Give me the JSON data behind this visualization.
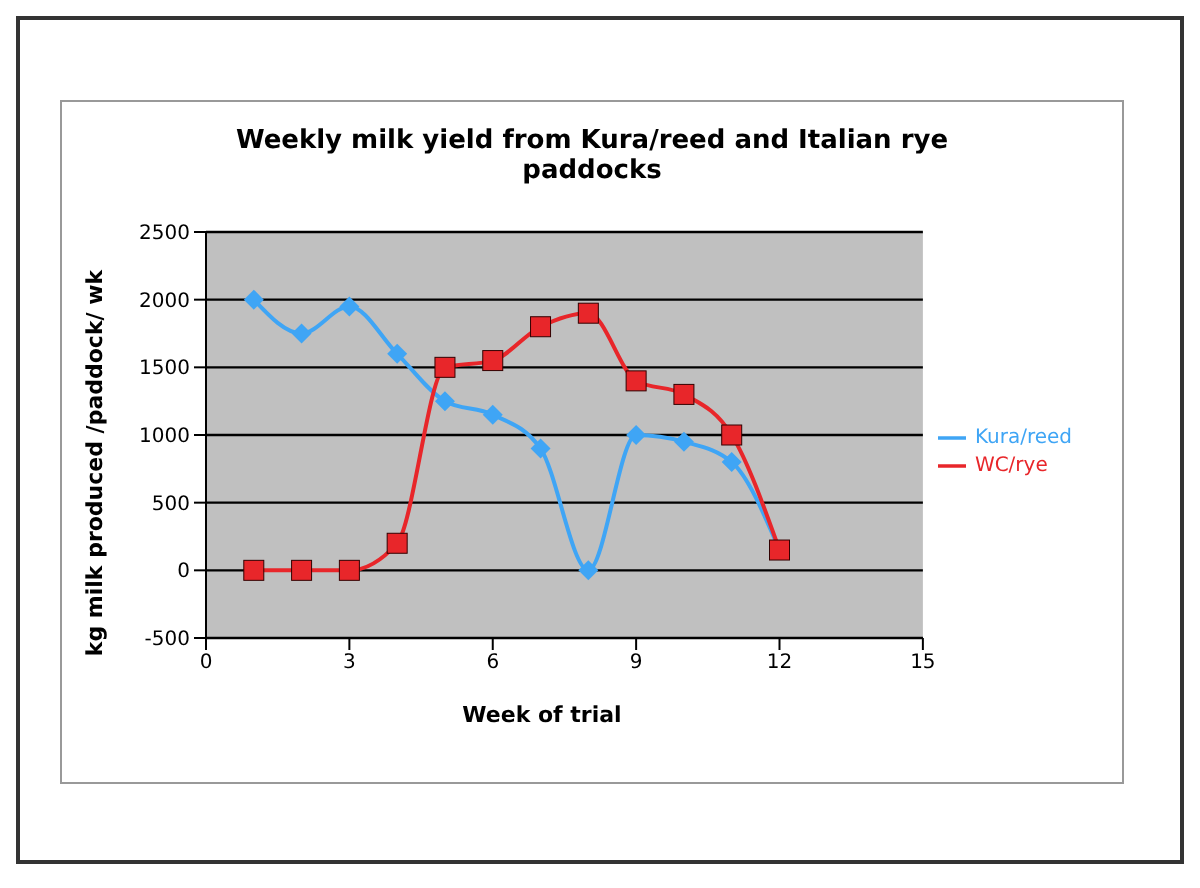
{
  "chart_data": {
    "type": "line",
    "title": "Weekly milk yield from Kura/reed and Italian rye paddocks",
    "xlabel": "Week of trial",
    "ylabel": "kg milk produced /paddock/ wk",
    "x": [
      1,
      2,
      3,
      4,
      5,
      6,
      7,
      8,
      9,
      10,
      11,
      12
    ],
    "series": [
      {
        "name": "Kura/reed",
        "color": "#3fa5f5",
        "marker": "diamond",
        "values": [
          2000,
          1750,
          1950,
          1600,
          1250,
          1150,
          900,
          0,
          1000,
          950,
          800,
          150
        ]
      },
      {
        "name": "WC/rye",
        "color": "#e8262a",
        "marker": "square",
        "values": [
          0,
          0,
          0,
          200,
          1500,
          1550,
          1800,
          1900,
          1400,
          1300,
          1000,
          150
        ]
      }
    ],
    "xlim": [
      0,
      15
    ],
    "xticks": [
      0,
      3,
      6,
      9,
      12,
      15
    ],
    "ylim": [
      -500,
      2500
    ],
    "yticks": [
      -500,
      0,
      500,
      1000,
      1500,
      2000,
      2500
    ],
    "grid": "y",
    "legend": "right"
  }
}
